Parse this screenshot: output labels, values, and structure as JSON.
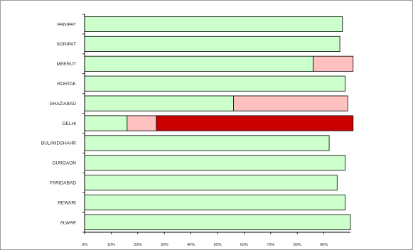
{
  "chart_data": {
    "type": "bar",
    "orientation": "horizontal",
    "stacked": true,
    "categories": [
      "PANIPAT",
      "SONIPAT",
      "MEERUT",
      "ROHTAK",
      "GHAZIABAD",
      "DELHI",
      "BULANDSHAHR",
      "GURGAON",
      "FARIDABAD",
      "REWARI",
      "ALWAR"
    ],
    "series": [
      {
        "color": "#ccffcc",
        "values": [
          97,
          96,
          86,
          98,
          56,
          16,
          92,
          98,
          95,
          98,
          100
        ]
      },
      {
        "color": "#ffc0c0",
        "values": [
          0,
          0,
          15,
          0,
          43,
          11,
          0,
          0,
          0,
          0,
          0
        ]
      },
      {
        "color": "#cc0000",
        "values": [
          0,
          0,
          0,
          0,
          0,
          74,
          0,
          0,
          0,
          0,
          0
        ]
      }
    ],
    "xlim": [
      0,
      100
    ],
    "xticks": [
      "0%",
      "10%",
      "20%",
      "30%",
      "40%",
      "50%",
      "60%",
      "70%",
      "80%",
      "90%"
    ],
    "grid": false,
    "legend": "none"
  }
}
